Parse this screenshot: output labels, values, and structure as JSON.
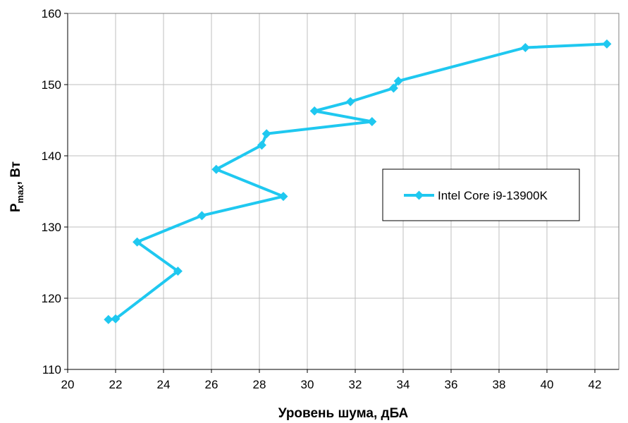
{
  "chart_data": {
    "type": "line",
    "xlabel": "Уровень шума, дБА",
    "ylabel": {
      "main": "P",
      "sub": "max",
      "rest": ", Вт"
    },
    "xlim": [
      20,
      43
    ],
    "ylim": [
      110,
      160
    ],
    "xticks": [
      20,
      22,
      24,
      26,
      28,
      30,
      32,
      34,
      36,
      38,
      40,
      42
    ],
    "yticks": [
      110,
      120,
      130,
      140,
      150,
      160
    ],
    "grid": true,
    "legend_position": "right-middle",
    "series": [
      {
        "name": "Intel Core i9-13900K",
        "color": "#1FC8F0",
        "marker": "diamond",
        "points": [
          [
            21.7,
            117.0
          ],
          [
            22.0,
            117.1
          ],
          [
            24.6,
            123.8
          ],
          [
            22.9,
            127.9
          ],
          [
            25.6,
            131.6
          ],
          [
            29.0,
            134.3
          ],
          [
            26.2,
            138.1
          ],
          [
            28.1,
            141.5
          ],
          [
            28.3,
            143.1
          ],
          [
            32.7,
            144.8
          ],
          [
            30.3,
            146.3
          ],
          [
            31.8,
            147.6
          ],
          [
            33.6,
            149.5
          ],
          [
            33.8,
            150.5
          ],
          [
            39.1,
            155.2
          ],
          [
            42.5,
            155.7
          ]
        ]
      }
    ]
  }
}
